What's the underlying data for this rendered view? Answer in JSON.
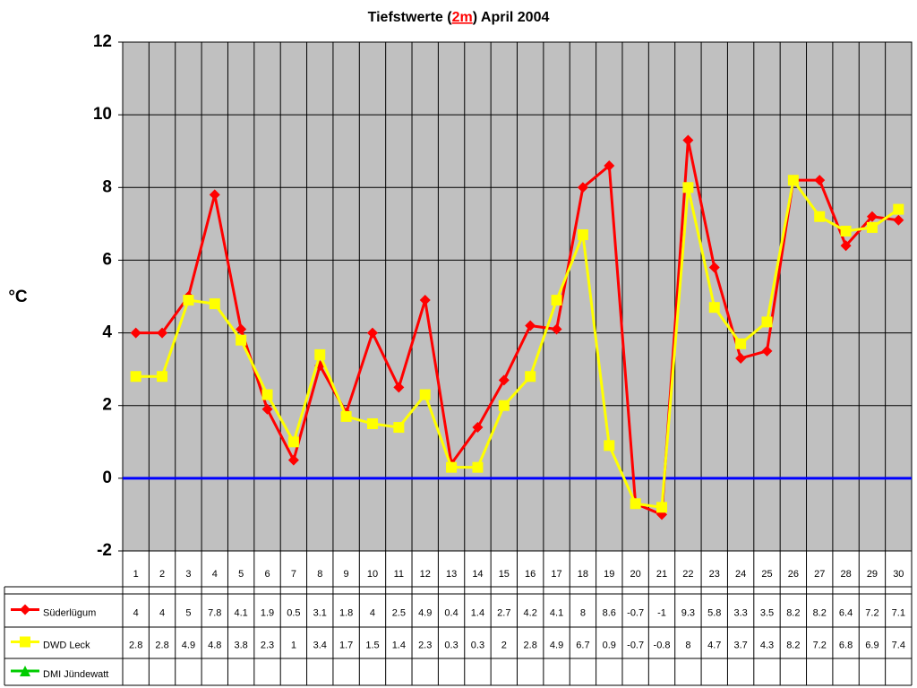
{
  "chart_data": {
    "type": "line",
    "title": [
      "Tiefstwerte (",
      "2m",
      ") April 2004"
    ],
    "y_label": "°C",
    "categories": [
      1,
      2,
      3,
      4,
      5,
      6,
      7,
      8,
      9,
      10,
      11,
      12,
      13,
      14,
      15,
      16,
      17,
      18,
      19,
      20,
      21,
      22,
      23,
      24,
      25,
      26,
      27,
      28,
      29,
      30
    ],
    "series": [
      {
        "name": "Süderlügum",
        "color": "#ff0000",
        "marker": "diamond",
        "values": [
          4,
          4,
          5,
          7.8,
          4.1,
          1.9,
          0.5,
          3.1,
          1.8,
          4,
          2.5,
          4.9,
          0.4,
          1.4,
          2.7,
          4.2,
          4.1,
          8,
          8.6,
          -0.7,
          -1,
          9.3,
          5.8,
          3.3,
          3.5,
          8.2,
          8.2,
          6.4,
          7.2,
          7.1
        ]
      },
      {
        "name": "DWD Leck",
        "color": "#ffff00",
        "marker": "square",
        "values": [
          2.8,
          2.8,
          4.9,
          4.8,
          3.8,
          2.3,
          1,
          3.4,
          1.7,
          1.5,
          1.4,
          2.3,
          0.3,
          0.3,
          2,
          2.8,
          4.9,
          6.7,
          0.9,
          -0.7,
          -0.8,
          8,
          4.7,
          3.7,
          4.3,
          8.2,
          7.2,
          6.8,
          6.9,
          7.4
        ]
      },
      {
        "name": "DMI Jündewatt",
        "color": "#00cc00",
        "marker": "triangle",
        "values": [
          null,
          null,
          null,
          null,
          null,
          null,
          null,
          null,
          null,
          null,
          null,
          null,
          null,
          null,
          null,
          null,
          null,
          null,
          null,
          null,
          null,
          null,
          null,
          null,
          null,
          null,
          null,
          null,
          null,
          null
        ]
      }
    ],
    "ylim": [
      -2,
      12
    ],
    "yticks": [
      -2,
      0,
      2,
      4,
      6,
      8,
      10,
      12
    ],
    "grid": true,
    "plot_background": "#c0c0c0",
    "zero_line_color": "#0000ff",
    "data_table": true
  }
}
